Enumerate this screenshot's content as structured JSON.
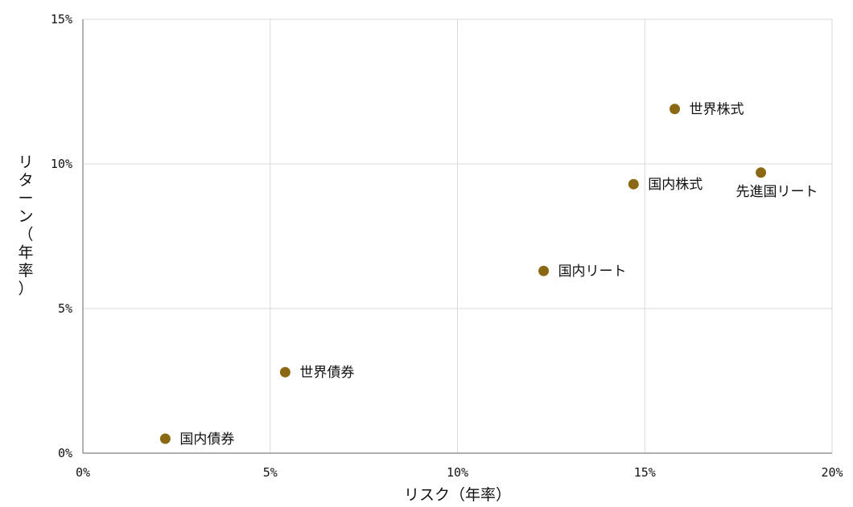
{
  "chart_data": {
    "type": "scatter",
    "xlabel": "リスク（年率）",
    "ylabel": "リターン（年率）",
    "xlim": [
      0,
      20
    ],
    "ylim": [
      0,
      15
    ],
    "x_ticks": [
      {
        "value": 0,
        "label": "0%"
      },
      {
        "value": 5,
        "label": "5%"
      },
      {
        "value": 10,
        "label": "10%"
      },
      {
        "value": 15,
        "label": "15%"
      },
      {
        "value": 20,
        "label": "20%"
      }
    ],
    "y_ticks": [
      {
        "value": 0,
        "label": "0%"
      },
      {
        "value": 5,
        "label": "5%"
      },
      {
        "value": 10,
        "label": "10%"
      },
      {
        "value": 15,
        "label": "15%"
      }
    ],
    "grid": true,
    "marker_color": "#8B6914",
    "grid_color": "#d9d9d9",
    "points": [
      {
        "label": "国内債券",
        "x": 2.2,
        "y": 0.5
      },
      {
        "label": "世界債券",
        "x": 5.4,
        "y": 2.8
      },
      {
        "label": "国内リート",
        "x": 12.3,
        "y": 6.3
      },
      {
        "label": "国内株式",
        "x": 14.7,
        "y": 9.3
      },
      {
        "label": "世界株式",
        "x": 15.8,
        "y": 11.9
      },
      {
        "label": "先進国リート",
        "x": 18.1,
        "y": 9.7,
        "label_position": "below"
      }
    ]
  }
}
